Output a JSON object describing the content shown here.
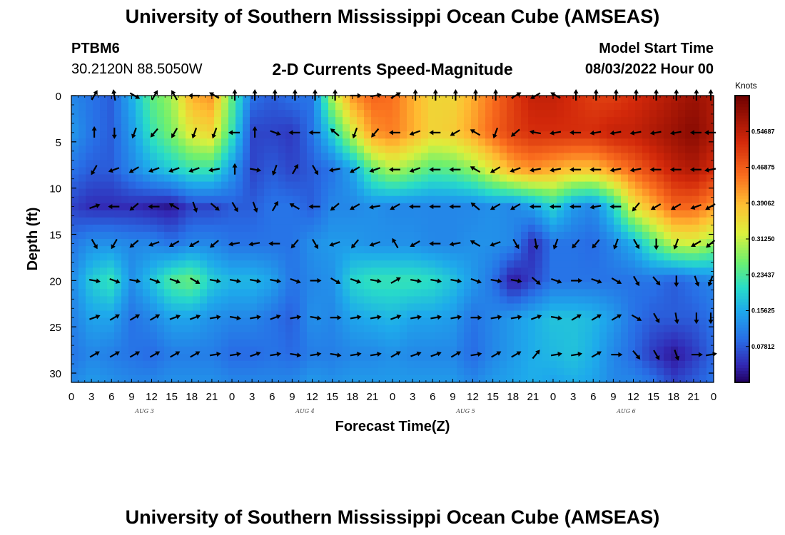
{
  "header": {
    "title": "University of Southern Mississippi Ocean Cube (AMSEAS)",
    "station": "PTBM6",
    "coords": "30.2120N  88.5050W",
    "plot_title": "2-D Currents Speed-Magnitude",
    "model_start_label": "Model Start Time",
    "model_start_value": "08/03/2022 Hour 00"
  },
  "footer": {
    "title": "University of Southern Mississippi Ocean Cube (AMSEAS)"
  },
  "chart_data": {
    "type": "heatmap",
    "title": "2-D Currents Speed-Magnitude",
    "xlabel": "Forecast Time(Z)",
    "ylabel": "Depth (ft)",
    "x_tick_labels": [
      "0",
      "3",
      "6",
      "9",
      "12",
      "15",
      "18",
      "21",
      "0",
      "3",
      "6",
      "9",
      "12",
      "15",
      "18",
      "21",
      "0",
      "3",
      "6",
      "9",
      "12",
      "15",
      "18",
      "21",
      "0",
      "3",
      "6",
      "9",
      "12",
      "15",
      "18",
      "21",
      "0"
    ],
    "x_hours_range": [
      0,
      96
    ],
    "day_labels": [
      {
        "text": "AUG 3",
        "hour": 12
      },
      {
        "text": "AUG 4",
        "hour": 36
      },
      {
        "text": "AUG 5",
        "hour": 60
      },
      {
        "text": "AUG 6",
        "hour": 84
      }
    ],
    "y_ticks": [
      0,
      5,
      10,
      15,
      20,
      25,
      30
    ],
    "ylim": [
      0,
      31
    ],
    "y_inverted": true,
    "colorbar": {
      "label": "Knots",
      "min": 0,
      "max": 0.625,
      "ticks": [
        "0.54687",
        "0.46875",
        "0.39062",
        "0.31250",
        "0.23437",
        "0.15625",
        "0.07812"
      ]
    },
    "speed_grid_hours": [
      0,
      3,
      6,
      9,
      12,
      15,
      18,
      21,
      24,
      27,
      30,
      33,
      36,
      39,
      42,
      45,
      48,
      51,
      54,
      57,
      60,
      63,
      66,
      69,
      72,
      75,
      78,
      81,
      84,
      87,
      90,
      93,
      96
    ],
    "speed_grid_depths": [
      0,
      4,
      8,
      12,
      16,
      20,
      24,
      28,
      31
    ],
    "speed_knots": [
      [
        0.12,
        0.1,
        0.08,
        0.16,
        0.25,
        0.29,
        0.4,
        0.42,
        0.25,
        0.1,
        0.08,
        0.1,
        0.1,
        0.3,
        0.42,
        0.46,
        0.45,
        0.4,
        0.36,
        0.36,
        0.4,
        0.45,
        0.5,
        0.54,
        0.54,
        0.52,
        0.5,
        0.5,
        0.52,
        0.54,
        0.56,
        0.58,
        0.56
      ],
      [
        0.14,
        0.1,
        0.08,
        0.14,
        0.22,
        0.27,
        0.34,
        0.36,
        0.22,
        0.06,
        0.06,
        0.05,
        0.1,
        0.2,
        0.32,
        0.42,
        0.44,
        0.4,
        0.36,
        0.37,
        0.41,
        0.46,
        0.5,
        0.52,
        0.52,
        0.52,
        0.52,
        0.54,
        0.54,
        0.56,
        0.58,
        0.6,
        0.56
      ],
      [
        0.1,
        0.08,
        0.08,
        0.12,
        0.16,
        0.19,
        0.22,
        0.22,
        0.14,
        0.06,
        0.08,
        0.06,
        0.08,
        0.1,
        0.15,
        0.25,
        0.3,
        0.27,
        0.24,
        0.25,
        0.28,
        0.34,
        0.4,
        0.42,
        0.4,
        0.38,
        0.38,
        0.42,
        0.46,
        0.5,
        0.54,
        0.56,
        0.52
      ],
      [
        0.06,
        0.04,
        0.04,
        0.04,
        0.03,
        0.02,
        0.06,
        0.06,
        0.08,
        0.08,
        0.1,
        0.1,
        0.08,
        0.12,
        0.12,
        0.13,
        0.12,
        0.12,
        0.12,
        0.12,
        0.12,
        0.13,
        0.12,
        0.15,
        0.2,
        0.14,
        0.12,
        0.2,
        0.34,
        0.4,
        0.46,
        0.46,
        0.42
      ],
      [
        0.1,
        0.13,
        0.13,
        0.12,
        0.12,
        0.1,
        0.12,
        0.12,
        0.1,
        0.1,
        0.1,
        0.1,
        0.13,
        0.14,
        0.14,
        0.13,
        0.13,
        0.13,
        0.12,
        0.12,
        0.13,
        0.13,
        0.12,
        0.04,
        0.1,
        0.1,
        0.09,
        0.12,
        0.16,
        0.24,
        0.31,
        0.32,
        0.28
      ],
      [
        0.12,
        0.19,
        0.22,
        0.13,
        0.18,
        0.24,
        0.26,
        0.19,
        0.17,
        0.17,
        0.15,
        0.1,
        0.12,
        0.13,
        0.2,
        0.22,
        0.22,
        0.22,
        0.21,
        0.18,
        0.14,
        0.1,
        0.02,
        0.06,
        0.1,
        0.1,
        0.1,
        0.1,
        0.1,
        0.1,
        0.08,
        0.1,
        0.12
      ],
      [
        0.11,
        0.15,
        0.15,
        0.1,
        0.12,
        0.15,
        0.15,
        0.13,
        0.12,
        0.12,
        0.1,
        0.08,
        0.13,
        0.12,
        0.15,
        0.16,
        0.17,
        0.15,
        0.15,
        0.14,
        0.1,
        0.12,
        0.14,
        0.16,
        0.18,
        0.18,
        0.17,
        0.14,
        0.1,
        0.08,
        0.08,
        0.08,
        0.1
      ],
      [
        0.1,
        0.12,
        0.11,
        0.1,
        0.09,
        0.11,
        0.11,
        0.11,
        0.09,
        0.09,
        0.1,
        0.09,
        0.11,
        0.11,
        0.12,
        0.12,
        0.13,
        0.12,
        0.12,
        0.12,
        0.09,
        0.12,
        0.14,
        0.16,
        0.17,
        0.18,
        0.16,
        0.12,
        0.09,
        0.05,
        0.02,
        0.05,
        0.09
      ],
      [
        0.12,
        0.14,
        0.13,
        0.12,
        0.12,
        0.13,
        0.13,
        0.13,
        0.12,
        0.12,
        0.12,
        0.12,
        0.14,
        0.13,
        0.14,
        0.14,
        0.14,
        0.14,
        0.14,
        0.14,
        0.12,
        0.14,
        0.15,
        0.16,
        0.15,
        0.16,
        0.15,
        0.12,
        0.12,
        0.1,
        0.06,
        0.08,
        0.1
      ]
    ],
    "vector_depths": [
      0,
      4,
      8,
      12,
      16,
      20,
      24,
      28
    ],
    "vector_hours": [
      3,
      6,
      9,
      12,
      15,
      18,
      21,
      24,
      27,
      30,
      33,
      36,
      39,
      42,
      45,
      48,
      51,
      54,
      57,
      60,
      63,
      66,
      69,
      72,
      75,
      78,
      81,
      84,
      87,
      90,
      93,
      96
    ],
    "vector_direction_deg": [
      [
        30,
        350,
        120,
        30,
        330,
        270,
        300,
        0,
        0,
        0,
        0,
        0,
        0,
        90,
        80,
        60,
        0,
        0,
        0,
        0,
        0,
        60,
        240,
        300,
        0,
        0,
        0,
        0,
        0,
        0,
        0,
        0
      ],
      [
        0,
        180,
        200,
        220,
        210,
        200,
        200,
        270,
        0,
        110,
        270,
        270,
        310,
        200,
        220,
        270,
        250,
        270,
        240,
        300,
        200,
        230,
        280,
        260,
        270,
        260,
        260,
        260,
        260,
        260,
        270,
        270
      ],
      [
        210,
        250,
        240,
        250,
        250,
        250,
        260,
        0,
        100,
        200,
        30,
        150,
        260,
        240,
        250,
        270,
        250,
        270,
        270,
        300,
        240,
        250,
        260,
        260,
        270,
        270,
        260,
        260,
        270,
        270,
        270,
        260
      ],
      [
        70,
        270,
        230,
        270,
        300,
        160,
        130,
        150,
        160,
        30,
        300,
        270,
        230,
        240,
        260,
        240,
        270,
        270,
        270,
        310,
        240,
        240,
        270,
        270,
        270,
        260,
        270,
        220,
        240,
        240,
        250,
        240
      ],
      [
        150,
        210,
        230,
        250,
        240,
        240,
        230,
        260,
        260,
        270,
        220,
        150,
        250,
        220,
        250,
        330,
        240,
        270,
        260,
        300,
        250,
        150,
        170,
        200,
        220,
        220,
        200,
        150,
        180,
        200,
        240,
        230
      ],
      [
        100,
        110,
        100,
        110,
        110,
        120,
        100,
        100,
        100,
        100,
        110,
        90,
        120,
        110,
        100,
        60,
        100,
        100,
        100,
        110,
        100,
        100,
        130,
        110,
        90,
        110,
        120,
        150,
        140,
        180,
        160,
        200
      ],
      [
        70,
        60,
        60,
        60,
        70,
        70,
        80,
        100,
        80,
        70,
        80,
        100,
        90,
        80,
        80,
        70,
        80,
        80,
        80,
        90,
        80,
        80,
        70,
        100,
        60,
        60,
        60,
        120,
        150,
        170,
        180,
        180
      ],
      [
        60,
        60,
        60,
        60,
        60,
        60,
        80,
        80,
        70,
        80,
        100,
        80,
        100,
        80,
        80,
        60,
        70,
        70,
        60,
        80,
        60,
        60,
        40,
        80,
        80,
        60,
        90,
        140,
        150,
        160,
        90,
        80
      ]
    ]
  }
}
